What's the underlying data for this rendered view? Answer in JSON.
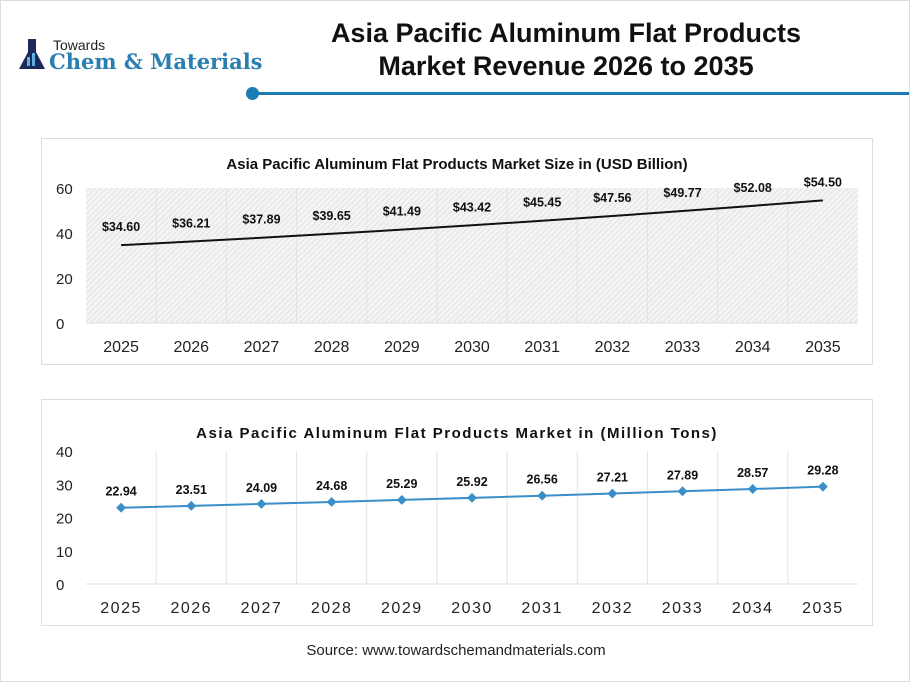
{
  "header": {
    "logo_small": "Towards",
    "logo_big": "Chem & Materials",
    "title_line1": "Asia Pacific Aluminum Flat Products",
    "title_line2": "Market Revenue 2026 to 2035",
    "accent": "#1a7bb5"
  },
  "source": "Source: www.towardschemandmaterials.com",
  "chart_data": [
    {
      "type": "line",
      "title": "Asia Pacific Aluminum Flat Products Market Size in (USD Billion)",
      "categories": [
        "2025",
        "2026",
        "2027",
        "2028",
        "2029",
        "2030",
        "2031",
        "2032",
        "2033",
        "2034",
        "2035"
      ],
      "values": [
        34.6,
        36.21,
        37.89,
        39.65,
        41.49,
        43.42,
        45.45,
        47.56,
        49.77,
        52.08,
        54.5
      ],
      "labels": [
        "$34.60",
        "$36.21",
        "$37.89",
        "$39.65",
        "$41.49",
        "$43.42",
        "$45.45",
        "$47.56",
        "$49.77",
        "$52.08",
        "$54.50"
      ],
      "ylim": [
        0,
        60
      ],
      "yticks": [
        "0",
        "20",
        "40",
        "60"
      ],
      "color": "#111111",
      "grid": true
    },
    {
      "type": "line",
      "title": "Asia Pacific Aluminum Flat Products Market in (Million Tons)",
      "categories": [
        "2025",
        "2026",
        "2027",
        "2028",
        "2029",
        "2030",
        "2031",
        "2032",
        "2033",
        "2034",
        "2035"
      ],
      "values": [
        22.94,
        23.51,
        24.09,
        24.68,
        25.29,
        25.92,
        26.56,
        27.21,
        27.89,
        28.57,
        29.28
      ],
      "labels": [
        "22.94",
        "23.51",
        "24.09",
        "24.68",
        "25.29",
        "25.92",
        "26.56",
        "27.21",
        "27.89",
        "28.57",
        "29.28"
      ],
      "ylim": [
        0,
        40
      ],
      "yticks": [
        "0",
        "10",
        "20",
        "30",
        "40"
      ],
      "color": "#3b8fc8",
      "grid": true
    }
  ]
}
